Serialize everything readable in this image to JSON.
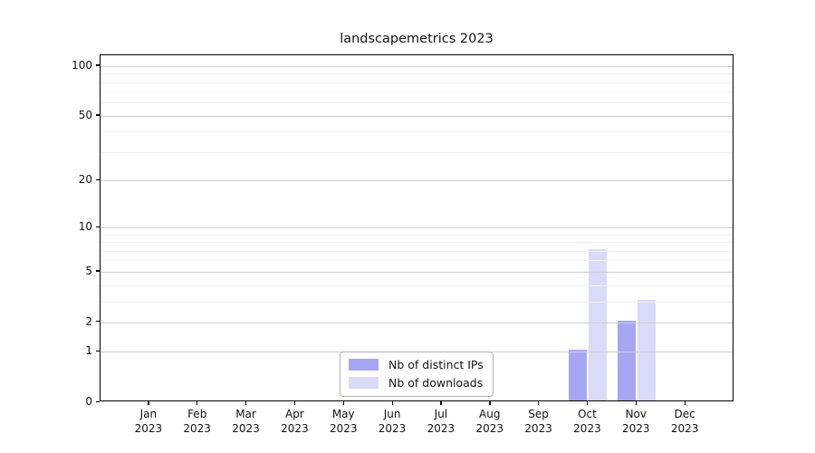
{
  "title": "landscapemetrics 2023",
  "chart_data": {
    "type": "bar",
    "title": "landscapemetrics 2023",
    "categories": [
      "Jan",
      "Feb",
      "Mar",
      "Apr",
      "May",
      "Jun",
      "Jul",
      "Aug",
      "Sep",
      "Oct",
      "Nov",
      "Dec"
    ],
    "category_year_label": "2023",
    "series": [
      {
        "name": "Nb of distinct IPs",
        "color": "#a6a6f2",
        "values": [
          0,
          0,
          0,
          0,
          0,
          0,
          0,
          0,
          0,
          1,
          2,
          0
        ]
      },
      {
        "name": "Nb of downloads",
        "color": "#dadaf9",
        "values": [
          0,
          0,
          0,
          0,
          0,
          0,
          0,
          0,
          0,
          7,
          3,
          0
        ]
      }
    ],
    "xlabel": "",
    "ylabel": "",
    "yscale": "log1p",
    "ylim": [
      0,
      116
    ],
    "yticks": [
      0,
      1,
      2,
      5,
      10,
      20,
      50,
      100
    ],
    "yticks_minor": [
      3,
      4,
      6,
      7,
      8,
      9,
      30,
      40,
      60,
      70,
      80,
      90
    ],
    "grid": "horizontal-major-and-minor",
    "legend_position": "lower center inside plot"
  },
  "colors": {
    "bar_distinct_ips": "#a6a6f2",
    "bar_downloads": "#dadaf9",
    "grid_major": "#cfcfcf",
    "grid_minor": "#f2f2f2",
    "axis_spine": "#000000"
  }
}
